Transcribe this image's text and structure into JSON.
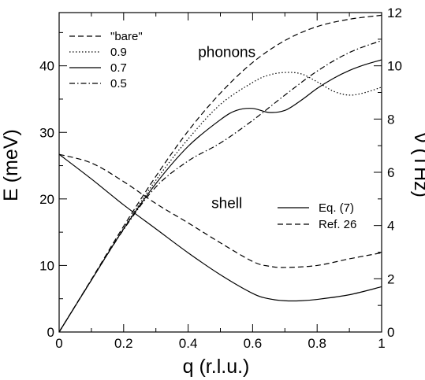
{
  "chart_data": {
    "type": "line",
    "xlabel": "q (r.l.u.)",
    "ylabel_left": "E (meV)",
    "ylabel_right": "ν (THz)",
    "xlim": [
      0,
      1
    ],
    "ylim_left": [
      0,
      48
    ],
    "ylim_right": [
      0,
      12
    ],
    "x_ticks": [
      {
        "value": 0,
        "label": "0"
      },
      {
        "value": 0.2,
        "label": "0.2"
      },
      {
        "value": 0.4,
        "label": "0.4"
      },
      {
        "value": 0.6,
        "label": "0.6"
      },
      {
        "value": 0.8,
        "label": "0.8"
      },
      {
        "value": 1,
        "label": "1"
      }
    ],
    "y_ticks_left": [
      {
        "value": 0,
        "label": "0"
      },
      {
        "value": 10,
        "label": "10"
      },
      {
        "value": 20,
        "label": "20"
      },
      {
        "value": 30,
        "label": "30"
      },
      {
        "value": 40,
        "label": "40"
      }
    ],
    "y_ticks_right": [
      {
        "value": 0,
        "label": "0"
      },
      {
        "value": 2,
        "label": "2"
      },
      {
        "value": 4,
        "label": "4"
      },
      {
        "value": 6,
        "label": "6"
      },
      {
        "value": 8,
        "label": "8"
      },
      {
        "value": 10,
        "label": "10"
      },
      {
        "value": 12,
        "label": "12"
      }
    ],
    "annotations": [
      {
        "text": "phonons",
        "x": 0.52,
        "y": 41.3
      },
      {
        "text": "shell",
        "x": 0.52,
        "y": 18.6
      }
    ],
    "legend_phonon": {
      "placement": "top-left",
      "entries": [
        {
          "label": "\"bare\"",
          "style": "dashed"
        },
        {
          "label": "0.9",
          "style": "dotted"
        },
        {
          "label": "0.7",
          "style": "solid"
        },
        {
          "label": "0.5",
          "style": "dashdot"
        }
      ]
    },
    "legend_shell": {
      "placement": "center-right",
      "entries": [
        {
          "label": "Eq. (7)",
          "style": "solid"
        },
        {
          "label": "Ref. 26",
          "style": "dashed"
        }
      ]
    },
    "series": [
      {
        "group": "phonon",
        "style": "dashed",
        "x": [
          0,
          0.1,
          0.2,
          0.3,
          0.4,
          0.5,
          0.6,
          0.7,
          0.8,
          0.9,
          1.0
        ],
        "y": [
          0,
          7.9,
          15.9,
          23.4,
          30.2,
          35.9,
          40.5,
          43.8,
          45.9,
          47.0,
          47.6
        ]
      },
      {
        "group": "phonon",
        "style": "dotted",
        "x": [
          0,
          0.1,
          0.2,
          0.3,
          0.4,
          0.5,
          0.6,
          0.65,
          0.7,
          0.75,
          0.8,
          0.85,
          0.9,
          0.95,
          1.0
        ],
        "y": [
          0,
          7.8,
          15.6,
          22.8,
          29.0,
          34.2,
          37.5,
          38.6,
          39.0,
          38.8,
          37.6,
          36.2,
          35.6,
          36.0,
          36.8
        ]
      },
      {
        "group": "phonon",
        "style": "solid",
        "x": [
          0,
          0.1,
          0.2,
          0.3,
          0.4,
          0.5,
          0.55,
          0.6,
          0.65,
          0.7,
          0.75,
          0.8,
          0.85,
          0.9,
          0.95,
          1.0
        ],
        "y": [
          0,
          7.8,
          15.5,
          22.3,
          27.9,
          31.9,
          33.3,
          33.6,
          33.0,
          33.3,
          34.8,
          36.6,
          38.1,
          39.3,
          40.2,
          40.9
        ]
      },
      {
        "group": "phonon",
        "style": "dashdot",
        "x": [
          0,
          0.1,
          0.2,
          0.3,
          0.4,
          0.5,
          0.6,
          0.7,
          0.8,
          0.9,
          1.0
        ],
        "y": [
          0,
          7.8,
          15.4,
          21.8,
          25.7,
          28.4,
          31.8,
          35.6,
          39.2,
          42.0,
          43.8
        ]
      },
      {
        "group": "shell",
        "style": "solid",
        "x": [
          0,
          0.1,
          0.2,
          0.3,
          0.4,
          0.5,
          0.6,
          0.65,
          0.7,
          0.75,
          0.8,
          0.9,
          1.0
        ],
        "y": [
          26.7,
          23.0,
          19.1,
          15.5,
          11.9,
          8.6,
          5.8,
          5.0,
          4.7,
          4.7,
          4.9,
          5.6,
          6.8
        ]
      },
      {
        "group": "shell",
        "style": "dashed",
        "x": [
          0,
          0.1,
          0.2,
          0.3,
          0.4,
          0.5,
          0.6,
          0.65,
          0.7,
          0.8,
          0.9,
          1.0
        ],
        "y": [
          26.7,
          25.4,
          22.6,
          19.3,
          16.4,
          13.4,
          10.6,
          9.9,
          9.7,
          10.0,
          11.0,
          11.9
        ]
      }
    ]
  }
}
